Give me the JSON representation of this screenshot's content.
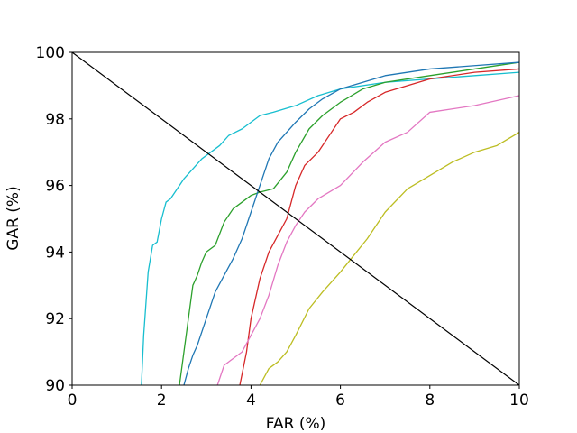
{
  "chart_data": {
    "type": "line",
    "title": "",
    "xlabel": "FAR (%)",
    "ylabel": "GAR (%)",
    "xlim": [
      0,
      10
    ],
    "ylim": [
      90,
      100
    ],
    "xticks": [
      0,
      2,
      4,
      6,
      8,
      10
    ],
    "yticks": [
      90,
      92,
      94,
      96,
      98,
      100
    ],
    "grid": false,
    "legend": "none",
    "reference_line": {
      "x": [
        0,
        10
      ],
      "y": [
        100,
        90
      ],
      "color": "#000000"
    },
    "series": [
      {
        "color": "#17becf",
        "x": [
          1.55,
          1.6,
          1.7,
          1.8,
          1.9,
          2.0,
          2.1,
          2.2,
          2.3,
          2.5,
          2.7,
          2.9,
          3.1,
          3.3,
          3.5,
          3.8,
          4.0,
          4.2,
          4.5,
          5.0,
          5.5,
          6.0,
          7.0,
          8.0,
          9.0,
          10.0
        ],
        "y": [
          90.0,
          91.5,
          93.4,
          94.2,
          94.3,
          95.0,
          95.5,
          95.6,
          95.8,
          96.2,
          96.5,
          96.8,
          97.0,
          97.2,
          97.5,
          97.7,
          97.9,
          98.1,
          98.2,
          98.4,
          98.7,
          98.9,
          99.1,
          99.2,
          99.3,
          99.4
        ]
      },
      {
        "color": "#2ca02c",
        "x": [
          2.4,
          2.5,
          2.6,
          2.7,
          2.8,
          2.9,
          3.0,
          3.2,
          3.4,
          3.6,
          3.8,
          4.0,
          4.2,
          4.5,
          4.8,
          5.0,
          5.3,
          5.6,
          6.0,
          6.5,
          7.0,
          8.0,
          9.0,
          10.0
        ],
        "y": [
          90.0,
          91.0,
          92.0,
          93.0,
          93.3,
          93.7,
          94.0,
          94.2,
          94.9,
          95.3,
          95.5,
          95.7,
          95.8,
          95.9,
          96.4,
          97.0,
          97.7,
          98.1,
          98.5,
          98.9,
          99.1,
          99.3,
          99.5,
          99.7
        ]
      },
      {
        "color": "#1f77b4",
        "x": [
          2.5,
          2.6,
          2.7,
          2.8,
          3.0,
          3.2,
          3.4,
          3.6,
          3.8,
          4.0,
          4.2,
          4.4,
          4.6,
          4.8,
          5.0,
          5.3,
          5.6,
          6.0,
          6.5,
          7.0,
          8.0,
          9.0,
          10.0
        ],
        "y": [
          90.0,
          90.5,
          90.9,
          91.2,
          92.0,
          92.8,
          93.3,
          93.8,
          94.4,
          95.2,
          96.0,
          96.8,
          97.3,
          97.6,
          97.9,
          98.3,
          98.6,
          98.9,
          99.1,
          99.3,
          99.5,
          99.6,
          99.7
        ]
      },
      {
        "color": "#d62728",
        "x": [
          3.75,
          3.9,
          4.0,
          4.2,
          4.4,
          4.6,
          4.8,
          5.0,
          5.2,
          5.5,
          5.8,
          6.0,
          6.3,
          6.6,
          7.0,
          7.5,
          8.0,
          9.0,
          10.0
        ],
        "y": [
          90.0,
          91.0,
          92.0,
          93.2,
          94.0,
          94.5,
          95.0,
          96.0,
          96.6,
          97.0,
          97.6,
          98.0,
          98.2,
          98.5,
          98.8,
          99.0,
          99.2,
          99.4,
          99.5
        ]
      },
      {
        "color": "#e377c2",
        "x": [
          3.25,
          3.4,
          3.6,
          3.8,
          4.0,
          4.2,
          4.4,
          4.6,
          4.8,
          5.0,
          5.2,
          5.5,
          6.0,
          6.5,
          7.0,
          7.5,
          8.0,
          9.0,
          10.0
        ],
        "y": [
          90.0,
          90.6,
          90.8,
          91.0,
          91.5,
          92.0,
          92.7,
          93.6,
          94.3,
          94.8,
          95.2,
          95.6,
          96.0,
          96.7,
          97.3,
          97.6,
          98.2,
          98.4,
          98.7
        ]
      },
      {
        "color": "#bcbd22",
        "x": [
          4.2,
          4.4,
          4.6,
          4.8,
          5.0,
          5.3,
          5.6,
          6.0,
          6.3,
          6.6,
          7.0,
          7.5,
          8.0,
          8.5,
          9.0,
          9.5,
          10.0
        ],
        "y": [
          90.0,
          90.5,
          90.7,
          91.0,
          91.5,
          92.3,
          92.8,
          93.4,
          93.9,
          94.4,
          95.2,
          95.9,
          96.3,
          96.7,
          97.0,
          97.2,
          97.6
        ]
      }
    ]
  }
}
